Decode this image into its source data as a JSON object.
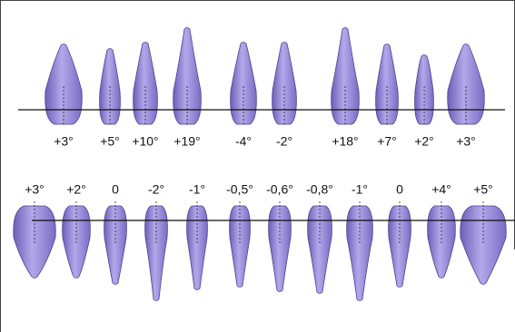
{
  "upper_row": {
    "labels": [
      "+3°",
      "+5°",
      "+10°",
      "+19°",
      "-4°",
      "-2°",
      "+18°",
      "+7°",
      "+2°",
      "+3°"
    ]
  },
  "lower_row": {
    "labels": [
      "+3°",
      "+2°",
      "0",
      "-2°",
      "-1°",
      "-0,5°",
      "-0,6°",
      "-0,8°",
      "-1°",
      "0",
      "+4°",
      "+5°"
    ]
  }
}
